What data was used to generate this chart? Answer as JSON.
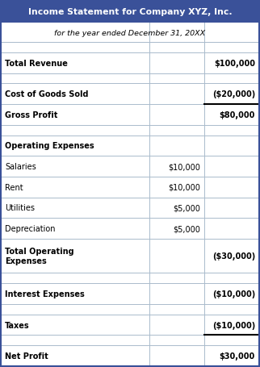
{
  "title": "Income Statement for Company XYZ, Inc.",
  "subtitle": "for the year ended December 31, 20XX",
  "header_bg": "#3A5199",
  "header_text_color": "#FFFFFF",
  "table_border_color": "#3A5199",
  "inner_line_color": "#AABBCC",
  "figsize": [
    3.22,
    4.56
  ],
  "dpi": 100,
  "rows": [
    {
      "label": "",
      "col1": "",
      "col2": "",
      "bold": false,
      "spacer": true,
      "top_border": false,
      "bottom_border": false
    },
    {
      "label": "Total Revenue",
      "col1": "",
      "col2": "$100,000",
      "bold": true,
      "spacer": false,
      "top_border": false,
      "bottom_border": false
    },
    {
      "label": "",
      "col1": "",
      "col2": "",
      "bold": false,
      "spacer": true,
      "top_border": false,
      "bottom_border": false
    },
    {
      "label": "Cost of Goods Sold",
      "col1": "",
      "col2": "($20,000)",
      "bold": true,
      "spacer": false,
      "top_border": false,
      "bottom_border": false
    },
    {
      "label": "Gross Profit",
      "col1": "",
      "col2": "$80,000",
      "bold": true,
      "spacer": false,
      "top_border": true,
      "bottom_border": false
    },
    {
      "label": "",
      "col1": "",
      "col2": "",
      "bold": false,
      "spacer": true,
      "top_border": false,
      "bottom_border": false
    },
    {
      "label": "Operating Expenses",
      "col1": "",
      "col2": "",
      "bold": true,
      "spacer": false,
      "top_border": false,
      "bottom_border": false
    },
    {
      "label": "Salaries",
      "col1": "$10,000",
      "col2": "",
      "bold": false,
      "spacer": false,
      "top_border": false,
      "bottom_border": false
    },
    {
      "label": "Rent",
      "col1": "$10,000",
      "col2": "",
      "bold": false,
      "spacer": false,
      "top_border": false,
      "bottom_border": false
    },
    {
      "label": "Utilities",
      "col1": "$5,000",
      "col2": "",
      "bold": false,
      "spacer": false,
      "top_border": false,
      "bottom_border": false
    },
    {
      "label": "Depreciation",
      "col1": "$5,000",
      "col2": "",
      "bold": false,
      "spacer": false,
      "top_border": false,
      "bottom_border": false
    },
    {
      "label": "Total Operating\nExpenses",
      "col1": "",
      "col2": "($30,000)",
      "bold": true,
      "spacer": false,
      "top_border": false,
      "bottom_border": false
    },
    {
      "label": "",
      "col1": "",
      "col2": "",
      "bold": false,
      "spacer": true,
      "top_border": false,
      "bottom_border": false
    },
    {
      "label": "Interest Expenses",
      "col1": "",
      "col2": "($10,000)",
      "bold": true,
      "spacer": false,
      "top_border": false,
      "bottom_border": false
    },
    {
      "label": "",
      "col1": "",
      "col2": "",
      "bold": false,
      "spacer": true,
      "top_border": false,
      "bottom_border": false
    },
    {
      "label": "Taxes",
      "col1": "",
      "col2": "($10,000)",
      "bold": true,
      "spacer": false,
      "top_border": false,
      "bottom_border": true
    },
    {
      "label": "",
      "col1": "",
      "col2": "",
      "bold": false,
      "spacer": true,
      "top_border": false,
      "bottom_border": false
    },
    {
      "label": "Net Profit",
      "col1": "",
      "col2": "$30,000",
      "bold": true,
      "spacer": false,
      "top_border": false,
      "bottom_border": false
    }
  ]
}
